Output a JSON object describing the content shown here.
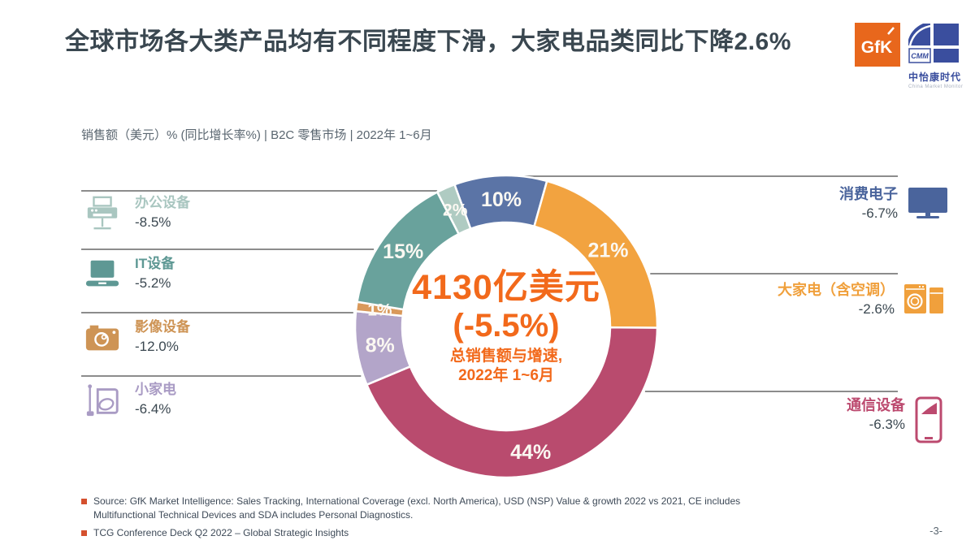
{
  "header": {
    "title": "全球市场各大类产品均有不同程度下滑，大家电品类同比下降2.6%",
    "gfk_logo_text": "GfK",
    "cmm_logo_text": "CMM",
    "cmm_logo_cn": "中怡康时代",
    "cmm_logo_en": "China Market Monitor"
  },
  "subtitle": "销售额（美元）% (同比增长率%) | B2C 零售市场 |  2022年 1~6月",
  "chart_data": {
    "type": "pie",
    "donut": true,
    "title": "全球市场各大类产品均有不同程度下滑，大家电品类同比下降2.6%",
    "subtitle": "销售额（美元）% (同比增长率%) | B2C 零售市场 | 2022年 1~6月",
    "start_angle_deg": -20,
    "direction": "clockwise",
    "unit": "% share of sales value",
    "segments": [
      {
        "category": "消费电子",
        "share_pct": 10,
        "growth_pct": -6.7,
        "color": "#5B74A6",
        "slice_label": "10%"
      },
      {
        "category": "大家电（含空调）",
        "share_pct": 21,
        "growth_pct": -2.6,
        "color": "#F2A340",
        "slice_label": "21%"
      },
      {
        "category": "通信设备",
        "share_pct": 44,
        "growth_pct": -6.3,
        "color": "#B94B6E",
        "slice_label": "44%"
      },
      {
        "category": "小家电",
        "share_pct": 8,
        "growth_pct": -6.4,
        "color": "#B3A5C9",
        "slice_label": "8%"
      },
      {
        "category": "影像设备",
        "share_pct": 1,
        "growth_pct": -12.0,
        "color": "#D9995B",
        "slice_label": "1%"
      },
      {
        "category": "IT设备",
        "share_pct": 15,
        "growth_pct": -5.2,
        "color": "#69A29C",
        "slice_label": "15%"
      },
      {
        "category": "办公设备",
        "share_pct": 2,
        "growth_pct": -8.5,
        "color": "#AFCBC2",
        "slice_label": "2%"
      }
    ],
    "center": {
      "line1": "4130亿美元",
      "line2": "(-5.5%)",
      "line3": "总销售额与增速,",
      "line4": "2022年 1~6月"
    }
  },
  "left_legend": [
    {
      "name": "办公设备",
      "value": "-8.5%",
      "color": "#A9C6C0",
      "icon": "printer-icon"
    },
    {
      "name": "IT设备",
      "value": "-5.2%",
      "color": "#5E9894",
      "icon": "laptop-icon"
    },
    {
      "name": "影像设备",
      "value": "-12.0%",
      "color": "#CE9455",
      "icon": "camera-icon"
    },
    {
      "name": "小家电",
      "value": "-6.4%",
      "color": "#A99BC4",
      "icon": "small-appliance-icon"
    }
  ],
  "right_legend": [
    {
      "name": "消费电子",
      "value": "-6.7%",
      "color": "#4A649C",
      "icon": "tv-icon"
    },
    {
      "name": "大家电（含空调）",
      "value": "-2.6%",
      "color": "#F0A03C",
      "icon": "washer-fridge-icon"
    },
    {
      "name": "通信设备",
      "value": "-6.3%",
      "color": "#BC4A6F",
      "icon": "smartphone-icon"
    }
  ],
  "footer": {
    "source_line1": "Source: GfK Market Intelligence: Sales Tracking, International Coverage (excl. North America), USD (NSP) Value & growth 2022 vs 2021, CE includes Multifunctional Technical Devices and SDA includes Personal Diagnostics.",
    "source_line2": "TCG Conference Deck Q2 2022 – Global Strategic Insights",
    "page_number": "-3-"
  }
}
